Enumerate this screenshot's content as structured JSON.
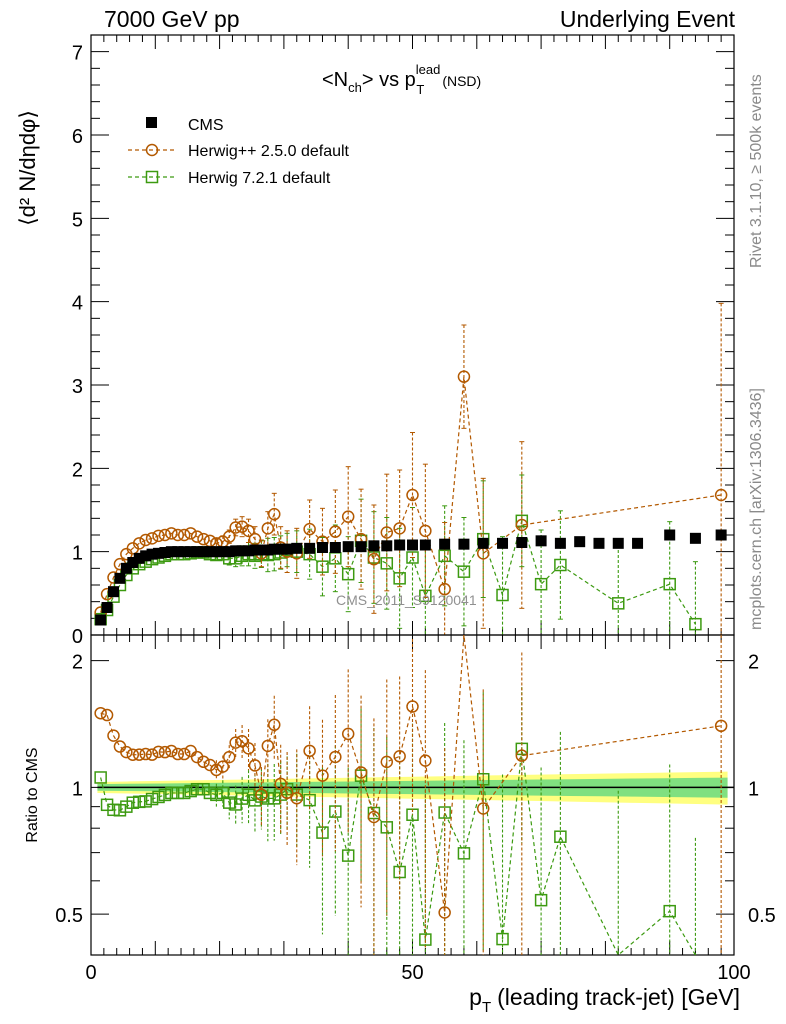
{
  "header": {
    "left": "7000 GeV pp",
    "right": "Underlying Event",
    "side_top": "Rivet 3.1.10, ≥ 500k events",
    "side_bottom": "mcplots.cern.ch [arXiv:1306.3436]"
  },
  "chart_data": {
    "type": "scatter",
    "title_main": "<N",
    "title_sub1": "ch",
    "title_mid": "> vs p",
    "title_sup": "lead",
    "title_sub2": "T",
    "title_end": "(NSD)",
    "watermark": "CMS_2011_S9120041",
    "ylabel": "⟨d² N/dηdφ⟩",
    "ratio_ylabel": "Ratio to CMS",
    "xlabel_main": "p",
    "xlabel_sub": "T",
    "xlabel_rest": "(leading track-jet) [GeV]",
    "xlim": [
      0,
      100
    ],
    "ylim": [
      0,
      7.2
    ],
    "ratio_ylim": [
      0.4,
      2.3
    ],
    "xticks": [
      "0",
      "50",
      "100"
    ],
    "yticks": [
      "0",
      "1",
      "2",
      "3",
      "4",
      "5",
      "6",
      "7"
    ],
    "ratio_yticks": [
      "0.5",
      "1",
      "2"
    ],
    "colors": {
      "cms": "#000000",
      "herwig_pp": "#b35900",
      "herwig7": "#3c9a10",
      "band_inner": "#80e080",
      "band_outer": "#ffff80"
    },
    "series": [
      {
        "name": "CMS",
        "x": [
          1.5,
          2.5,
          3.5,
          4.5,
          5.5,
          6.5,
          7.5,
          8.5,
          9.5,
          10.5,
          11.5,
          12.5,
          13.5,
          14.5,
          15.5,
          16.5,
          17.5,
          18.5,
          19.5,
          20.5,
          21.5,
          22.5,
          23.5,
          24.5,
          25.5,
          26.5,
          27.5,
          28.5,
          29.5,
          30.5,
          32,
          34,
          36,
          38,
          40,
          42,
          44,
          46,
          48,
          50,
          52,
          55,
          58,
          61,
          64,
          67,
          70,
          73,
          76,
          79,
          82,
          85,
          90,
          94,
          98
        ],
        "values": [
          0.18,
          0.33,
          0.52,
          0.68,
          0.8,
          0.87,
          0.92,
          0.95,
          0.97,
          0.98,
          0.99,
          1.0,
          1.0,
          1.0,
          1.0,
          1.0,
          1.0,
          1.0,
          1.0,
          1.0,
          1.0,
          1.01,
          1.01,
          1.01,
          1.02,
          1.02,
          1.02,
          1.03,
          1.03,
          1.03,
          1.04,
          1.04,
          1.05,
          1.05,
          1.06,
          1.06,
          1.07,
          1.07,
          1.08,
          1.08,
          1.08,
          1.09,
          1.09,
          1.1,
          1.1,
          1.11,
          1.13,
          1.1,
          1.12,
          1.1,
          1.1,
          1.1,
          1.2,
          1.16,
          1.2
        ]
      },
      {
        "name": "Herwig++ 2.5.0 default",
        "x": [
          1.5,
          2.5,
          3.5,
          4.5,
          5.5,
          6.5,
          7.5,
          8.5,
          9.5,
          10.5,
          11.5,
          12.5,
          13.5,
          14.5,
          15.5,
          16.5,
          17.5,
          18.5,
          19.5,
          20.5,
          21.5,
          22.5,
          23.5,
          24.5,
          25.5,
          26.5,
          27.5,
          28.5,
          29.5,
          30.5,
          32,
          34,
          36,
          38,
          40,
          42,
          44,
          46,
          48,
          50,
          52,
          55,
          58,
          61,
          67,
          98
        ],
        "values": [
          0.27,
          0.49,
          0.69,
          0.85,
          0.97,
          1.04,
          1.1,
          1.14,
          1.16,
          1.19,
          1.2,
          1.22,
          1.2,
          1.2,
          1.22,
          1.18,
          1.15,
          1.13,
          1.1,
          1.12,
          1.18,
          1.29,
          1.3,
          1.25,
          1.15,
          0.98,
          1.28,
          1.45,
          1.05,
          1.0,
          0.98,
          1.27,
          1.12,
          1.24,
          1.42,
          1.15,
          0.91,
          1.23,
          1.28,
          1.68,
          1.25,
          0.55,
          3.1,
          0.98,
          1.32,
          1.68
        ],
        "err": [
          0.02,
          0.02,
          0.02,
          0.02,
          0.02,
          0.02,
          0.02,
          0.02,
          0.03,
          0.03,
          0.03,
          0.03,
          0.03,
          0.03,
          0.04,
          0.04,
          0.05,
          0.05,
          0.06,
          0.07,
          0.08,
          0.1,
          0.12,
          0.14,
          0.15,
          0.16,
          0.2,
          0.25,
          0.25,
          0.25,
          0.3,
          0.35,
          0.4,
          0.5,
          0.6,
          0.6,
          0.65,
          0.7,
          0.7,
          0.75,
          0.8,
          0.8,
          0.62,
          0.9,
          1.0,
          2.3
        ]
      },
      {
        "name": "Herwig 7.2.1 default",
        "x": [
          1.5,
          2.5,
          3.5,
          4.5,
          5.5,
          6.5,
          7.5,
          8.5,
          9.5,
          10.5,
          11.5,
          12.5,
          13.5,
          14.5,
          15.5,
          16.5,
          17.5,
          18.5,
          19.5,
          20.5,
          21.5,
          22.5,
          23.5,
          24.5,
          25.5,
          26.5,
          27.5,
          28.5,
          29.5,
          30.5,
          32,
          34,
          36,
          38,
          40,
          42,
          44,
          46,
          48,
          50,
          52,
          55,
          58,
          61,
          64,
          67,
          70,
          73,
          82,
          90,
          94
        ],
        "values": [
          0.19,
          0.3,
          0.46,
          0.6,
          0.72,
          0.8,
          0.85,
          0.88,
          0.91,
          0.93,
          0.95,
          0.97,
          0.97,
          0.97,
          0.98,
          0.99,
          0.99,
          0.97,
          0.96,
          0.97,
          0.92,
          0.92,
          0.95,
          0.97,
          0.95,
          0.97,
          0.96,
          0.97,
          0.99,
          1.02,
          1.0,
          0.97,
          0.82,
          0.92,
          0.73,
          1.13,
          0.93,
          0.86,
          0.68,
          0.93,
          0.47,
          0.95,
          0.76,
          1.15,
          0.48,
          1.37,
          0.61,
          0.84,
          0.38,
          0.61,
          0.13
        ],
        "err": [
          0.02,
          0.02,
          0.02,
          0.02,
          0.02,
          0.02,
          0.02,
          0.02,
          0.03,
          0.03,
          0.03,
          0.03,
          0.03,
          0.03,
          0.04,
          0.04,
          0.05,
          0.05,
          0.06,
          0.07,
          0.08,
          0.1,
          0.12,
          0.14,
          0.15,
          0.16,
          0.2,
          0.2,
          0.2,
          0.2,
          0.25,
          0.3,
          0.35,
          0.4,
          0.45,
          0.5,
          0.55,
          0.55,
          0.6,
          0.6,
          0.6,
          0.6,
          0.65,
          0.7,
          0.7,
          0.55,
          0.65,
          0.65,
          0.7,
          0.75,
          0.75
        ]
      }
    ]
  }
}
